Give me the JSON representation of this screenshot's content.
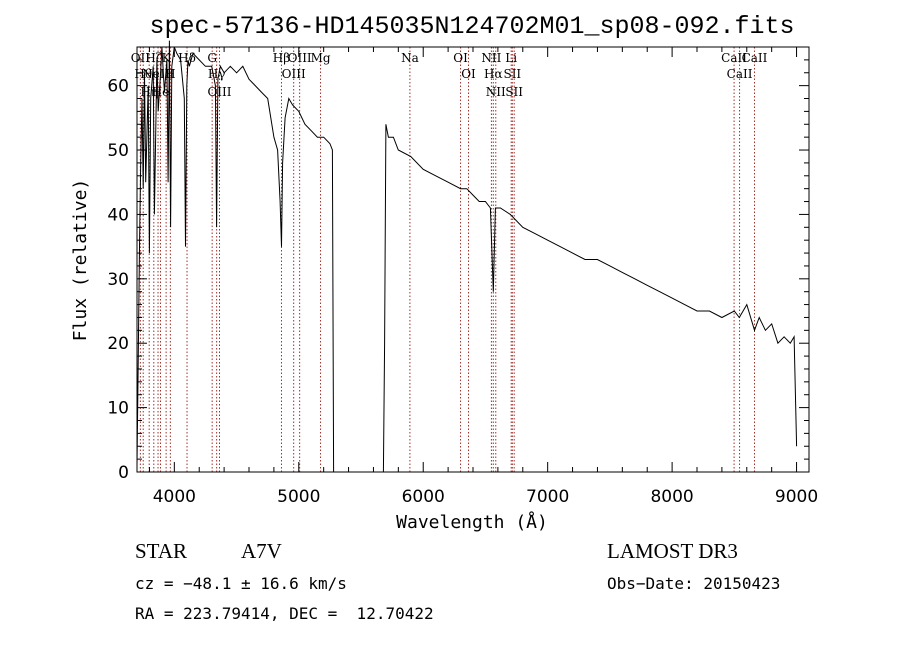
{
  "chart_data": {
    "type": "line",
    "title": "spec-57136-HD145035N124702M01_sp08-092.fits",
    "xlabel": "Wavelength (Å)",
    "ylabel": "Flux (relative)",
    "xlim": [
      3700,
      9100
    ],
    "ylim": [
      0,
      66
    ],
    "xticks": [
      4000,
      5000,
      6000,
      7000,
      8000,
      9000
    ],
    "yticks": [
      0,
      10,
      20,
      30,
      40,
      50,
      60
    ],
    "grid": false,
    "series": [
      {
        "name": "spectrum",
        "x": [
          3700,
          3710,
          3720,
          3730,
          3740,
          3750,
          3760,
          3770,
          3790,
          3800,
          3810,
          3830,
          3840,
          3860,
          3870,
          3890,
          3900,
          3920,
          3940,
          3950,
          3960,
          3970,
          3980,
          4000,
          4020,
          4050,
          4080,
          4090,
          4100,
          4110,
          4120,
          4150,
          4200,
          4250,
          4300,
          4330,
          4340,
          4350,
          4370,
          4400,
          4450,
          4500,
          4550,
          4600,
          4650,
          4700,
          4750,
          4800,
          4830,
          4850,
          4861,
          4870,
          4890,
          4920,
          4950,
          5000,
          5050,
          5100,
          5150,
          5200,
          5250,
          5270,
          5280,
          5300,
          5400,
          5500,
          5600,
          5680,
          5690,
          5700,
          5710,
          5720,
          5760,
          5800,
          5900,
          6000,
          6100,
          6200,
          6300,
          6350,
          6400,
          6450,
          6500,
          6540,
          6563,
          6580,
          6620,
          6700,
          6800,
          6900,
          7000,
          7100,
          7200,
          7300,
          7400,
          7500,
          7600,
          7700,
          7800,
          7900,
          8000,
          8100,
          8200,
          8300,
          8400,
          8500,
          8540,
          8600,
          8662,
          8700,
          8750,
          8800,
          8850,
          8900,
          8950,
          8980,
          9000
        ],
        "values": [
          1,
          17,
          35,
          48,
          58,
          44,
          62,
          45,
          60,
          34,
          58,
          63,
          40,
          64,
          56,
          62,
          66,
          59,
          64,
          45,
          67,
          38,
          63,
          66,
          65,
          64,
          58,
          35,
          60,
          64,
          63,
          65,
          64,
          63,
          63,
          60,
          38,
          61,
          63,
          62,
          63,
          62,
          63,
          61,
          60,
          59,
          58,
          52,
          50,
          42,
          35,
          48,
          55,
          58,
          57,
          56,
          54,
          53,
          52,
          52,
          51,
          50,
          0,
          0,
          0,
          0,
          0,
          0,
          20,
          54,
          53,
          52,
          52,
          50,
          49,
          47,
          46,
          45,
          44,
          44,
          43,
          42,
          42,
          41,
          28,
          41,
          41,
          40,
          38,
          37,
          36,
          35,
          34,
          33,
          33,
          32,
          31,
          30,
          29,
          28,
          27,
          26,
          25,
          25,
          24,
          25,
          24,
          26,
          22,
          24,
          22,
          23,
          20,
          21,
          20,
          21,
          4
        ]
      }
    ],
    "spectral_lines": [
      {
        "wavelength": 3727,
        "label": "OII"
      },
      {
        "wavelength": 3750,
        "label": "Hθ"
      },
      {
        "wavelength": 3798,
        "label": "Hη"
      },
      {
        "wavelength": 3835,
        "label": "Hζ"
      },
      {
        "wavelength": 3869,
        "label": "NeIII"
      },
      {
        "wavelength": 3889,
        "label": "He"
      },
      {
        "wavelength": 3934,
        "label": "K"
      },
      {
        "wavelength": 3968,
        "label": "H"
      },
      {
        "wavelength": 4102,
        "label": "Hδ"
      },
      {
        "wavelength": 4304,
        "label": "G"
      },
      {
        "wavelength": 4340,
        "label": "Hγ"
      },
      {
        "wavelength": 4363,
        "label": "OIII"
      },
      {
        "wavelength": 4861,
        "label": "Hβ"
      },
      {
        "wavelength": 4959,
        "label": "OIII"
      },
      {
        "wavelength": 5007,
        "label": "OIII"
      },
      {
        "wavelength": 5175,
        "label": "Mg"
      },
      {
        "wavelength": 5893,
        "label": "Na"
      },
      {
        "wavelength": 6300,
        "label": "OI"
      },
      {
        "wavelength": 6364,
        "label": "OI"
      },
      {
        "wavelength": 6548,
        "label": "NII"
      },
      {
        "wavelength": 6563,
        "label": "Hα"
      },
      {
        "wavelength": 6583,
        "label": "NII"
      },
      {
        "wavelength": 6707,
        "label": "Li"
      },
      {
        "wavelength": 6716,
        "label": "SII"
      },
      {
        "wavelength": 6731,
        "label": "SII"
      },
      {
        "wavelength": 8498,
        "label": "CaII"
      },
      {
        "wavelength": 8542,
        "label": "CaII"
      },
      {
        "wavelength": 8662,
        "label": "CaII"
      }
    ]
  },
  "info": {
    "class_label": "STAR",
    "subclass": "A7V",
    "survey": "LAMOST DR3",
    "cz": "cz = −48.1 ± 16.6 km/s",
    "obs_date": "Obs−Date: 20150423",
    "radec": "RA = 223.79414, DEC =  12.70422"
  },
  "colors": {
    "spectrum": "#000000",
    "line_marker": "#a0302a",
    "axes": "#000000"
  }
}
